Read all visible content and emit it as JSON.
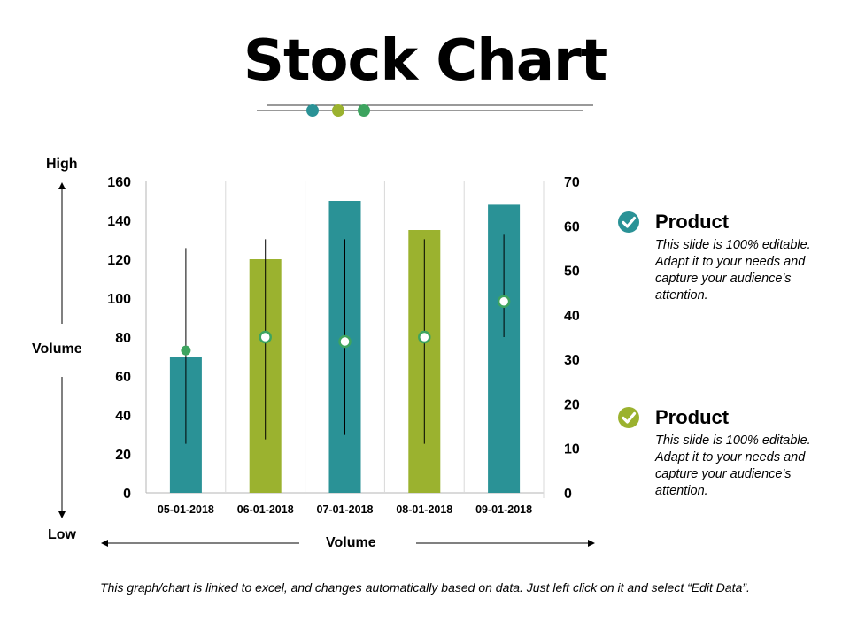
{
  "title": "Stock Chart",
  "colors": {
    "teal": "#2a9296",
    "olive": "#9bb22f",
    "green": "#3da45f"
  },
  "labels": {
    "high": "High",
    "low": "Low",
    "volume_left": "Volume",
    "volume_bottom": "Volume"
  },
  "legend": [
    {
      "title": "Product",
      "text": "This slide is 100% editable. Adapt it to your needs and capture your audience's attention.",
      "color": "#2a9296",
      "icon": "check-circle-icon"
    },
    {
      "title": "Product",
      "text": "This slide is 100% editable. Adapt it to your needs and capture your audience's attention.",
      "color": "#9bb22f",
      "icon": "check-circle-icon"
    }
  ],
  "footnote": "This graph/chart is linked to excel, and changes automatically based on data. Just left click on it and select “Edit Data”.",
  "chart_data": {
    "type": "bar",
    "categories": [
      "05-01-2018",
      "06-01-2018",
      "07-01-2018",
      "08-01-2018",
      "09-01-2018"
    ],
    "y_left": {
      "min": 0,
      "max": 160,
      "ticks": [
        "0",
        "20",
        "40",
        "60",
        "80",
        "100",
        "120",
        "140",
        "160"
      ]
    },
    "y_right": {
      "min": 0,
      "max": 70,
      "ticks": [
        "0",
        "10",
        "20",
        "30",
        "40",
        "50",
        "60",
        "70"
      ]
    },
    "volume": [
      70,
      120,
      150,
      135,
      148
    ],
    "bar_colors": [
      "#2a9296",
      "#9bb22f",
      "#2a9296",
      "#9bb22f",
      "#2a9296"
    ],
    "high": [
      55,
      57,
      57,
      57,
      58
    ],
    "low": [
      11,
      12,
      13,
      11,
      35
    ],
    "close": [
      32,
      35,
      34,
      35,
      43
    ],
    "close_marker_styles": [
      "filled",
      "hollow",
      "hollow",
      "hollow",
      "hollow"
    ],
    "grid": "vertical separators"
  }
}
